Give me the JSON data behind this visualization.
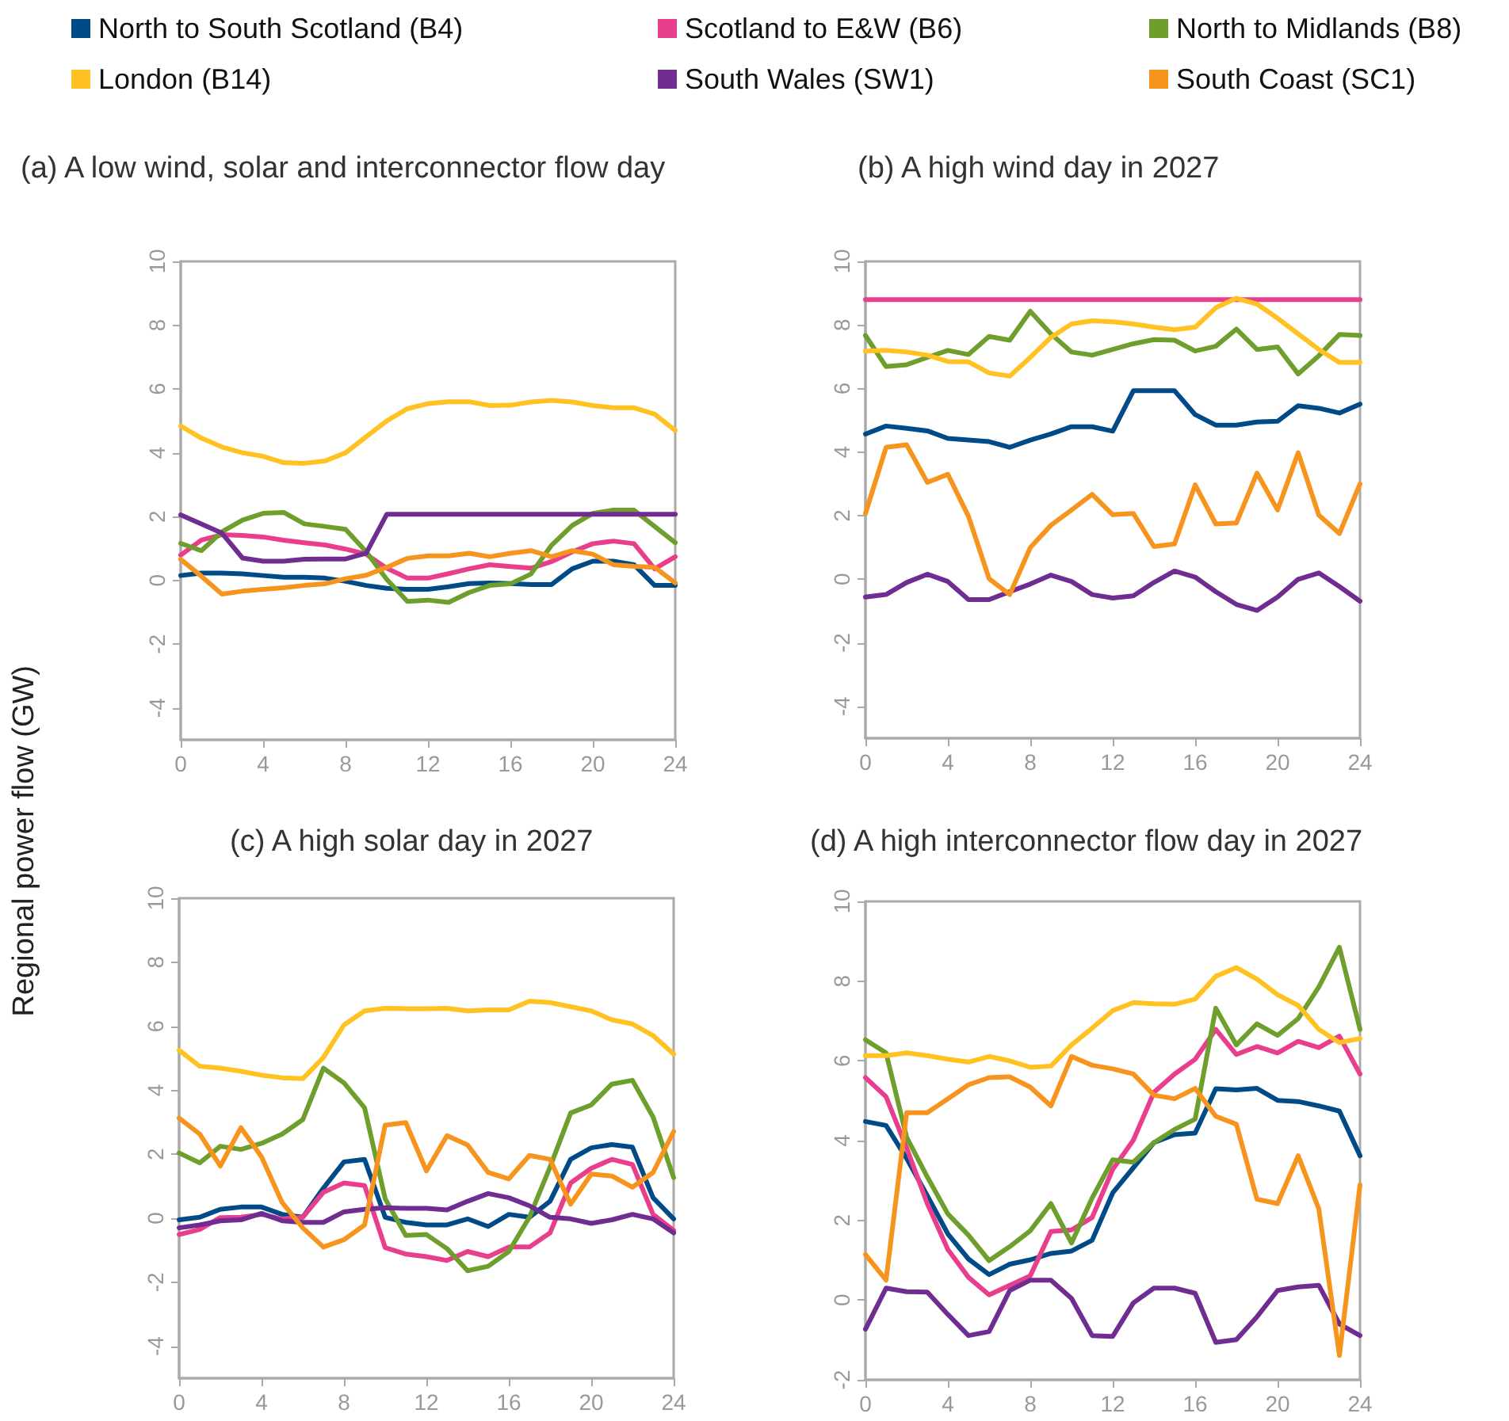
{
  "chart_data": [
    {
      "type": "line",
      "title": "(a) A low wind, solar and interconnector flow day",
      "ylabel": "Regional power flow (GW)",
      "legend": "top",
      "marker": "none",
      "grid": false,
      "x": [
        0,
        1,
        2,
        3,
        4,
        5,
        6,
        7,
        8,
        9,
        10,
        11,
        12,
        13,
        14,
        15,
        16,
        17,
        18,
        19,
        20,
        21,
        22,
        23,
        24
      ],
      "xlim": [
        0,
        24
      ],
      "xticks": [
        0,
        4,
        8,
        12,
        16,
        20,
        24
      ],
      "ylim": [
        -5,
        10
      ],
      "yticks": [
        -4,
        -2,
        0,
        2,
        4,
        6,
        8,
        10
      ],
      "series": [
        {
          "name": "North to South Scotland (B4)",
          "color": "#004b87",
          "values": [
            0.15,
            0.23,
            0.23,
            0.2,
            0.15,
            0.1,
            0.1,
            0.07,
            -0.03,
            -0.16,
            -0.25,
            -0.28,
            -0.28,
            -0.2,
            -0.1,
            -0.08,
            -0.1,
            -0.13,
            -0.13,
            0.36,
            0.6,
            0.6,
            0.49,
            -0.16,
            -0.16
          ]
        },
        {
          "name": "Scotland to E&W (B6)",
          "color": "#e83e8c",
          "values": [
            0.79,
            1.26,
            1.43,
            1.41,
            1.36,
            1.26,
            1.18,
            1.11,
            0.98,
            0.82,
            0.38,
            0.07,
            0.07,
            0.21,
            0.36,
            0.49,
            0.43,
            0.38,
            0.59,
            0.89,
            1.15,
            1.23,
            1.15,
            0.36,
            0.74
          ]
        },
        {
          "name": "North to Midlands (B8)",
          "color": "#6e9f2d",
          "values": [
            1.16,
            0.93,
            1.52,
            1.89,
            2.1,
            2.13,
            1.77,
            1.69,
            1.6,
            0.9,
            0.03,
            -0.66,
            -0.62,
            -0.69,
            -0.38,
            -0.16,
            -0.11,
            0.2,
            1.1,
            1.72,
            2.1,
            2.2,
            2.2,
            1.69,
            1.18
          ]
        },
        {
          "name": "London (B14)",
          "color": "#ffc222",
          "values": [
            4.84,
            4.46,
            4.18,
            4.0,
            3.89,
            3.69,
            3.67,
            3.74,
            4.0,
            4.5,
            5.0,
            5.38,
            5.54,
            5.6,
            5.6,
            5.48,
            5.49,
            5.59,
            5.64,
            5.59,
            5.48,
            5.41,
            5.41,
            5.21,
            4.7
          ]
        },
        {
          "name": "South Wales (SW1)",
          "color": "#6f2c91",
          "values": [
            2.05,
            1.77,
            1.48,
            0.7,
            0.6,
            0.6,
            0.66,
            0.67,
            0.67,
            0.85,
            2.07,
            2.07,
            2.07,
            2.07,
            2.07,
            2.07,
            2.07,
            2.07,
            2.07,
            2.07,
            2.07,
            2.07,
            2.07,
            2.07,
            2.07
          ]
        },
        {
          "name": "South Coast (SC1)",
          "color": "#f7941d",
          "values": [
            0.66,
            0.13,
            -0.43,
            -0.34,
            -0.28,
            -0.23,
            -0.16,
            -0.11,
            0.05,
            0.16,
            0.41,
            0.69,
            0.77,
            0.77,
            0.85,
            0.74,
            0.85,
            0.93,
            0.74,
            0.93,
            0.82,
            0.49,
            0.44,
            0.41,
            -0.08
          ]
        }
      ]
    },
    {
      "type": "line",
      "title": "(b) A high wind day in 2027",
      "marker": "none",
      "grid": false,
      "x": [
        0,
        1,
        2,
        3,
        4,
        5,
        6,
        7,
        8,
        9,
        10,
        11,
        12,
        13,
        14,
        15,
        16,
        17,
        18,
        19,
        20,
        21,
        22,
        23,
        24
      ],
      "xlim": [
        0,
        24
      ],
      "xticks": [
        0,
        4,
        8,
        12,
        16,
        20,
        24
      ],
      "ylim": [
        -5,
        10
      ],
      "yticks": [
        -4,
        -2,
        0,
        2,
        4,
        6,
        8,
        10
      ],
      "series": [
        {
          "color": "#004b87",
          "values": [
            4.57,
            4.82,
            4.75,
            4.67,
            4.43,
            4.38,
            4.33,
            4.15,
            4.38,
            4.57,
            4.8,
            4.8,
            4.66,
            5.93,
            5.93,
            5.93,
            5.18,
            4.85,
            4.85,
            4.95,
            4.97,
            5.46,
            5.38,
            5.23,
            5.51
          ]
        },
        {
          "color": "#e83e8c",
          "values": [
            8.8,
            8.8,
            8.8,
            8.8,
            8.8,
            8.8,
            8.8,
            8.8,
            8.8,
            8.8,
            8.8,
            8.8,
            8.8,
            8.8,
            8.8,
            8.8,
            8.8,
            8.8,
            8.8,
            8.8,
            8.8,
            8.8,
            8.8,
            8.8,
            8.8
          ]
        },
        {
          "color": "#6e9f2d",
          "values": [
            7.67,
            6.69,
            6.75,
            6.98,
            7.2,
            7.07,
            7.64,
            7.52,
            8.43,
            7.72,
            7.15,
            7.05,
            7.23,
            7.41,
            7.54,
            7.52,
            7.18,
            7.33,
            7.87,
            7.23,
            7.31,
            6.46,
            7.03,
            7.7,
            7.67
          ]
        },
        {
          "color": "#ffc222",
          "values": [
            7.18,
            7.2,
            7.15,
            7.05,
            6.85,
            6.84,
            6.49,
            6.39,
            6.98,
            7.61,
            8.03,
            8.13,
            8.1,
            8.03,
            7.93,
            7.85,
            7.93,
            8.54,
            8.84,
            8.66,
            8.21,
            7.72,
            7.23,
            6.82,
            6.82
          ]
        },
        {
          "color": "#6f2c91",
          "values": [
            -0.56,
            -0.48,
            -0.1,
            0.16,
            -0.07,
            -0.64,
            -0.64,
            -0.39,
            -0.15,
            0.13,
            -0.07,
            -0.48,
            -0.59,
            -0.52,
            -0.1,
            0.26,
            0.07,
            -0.39,
            -0.79,
            -0.98,
            -0.56,
            0,
            0.2,
            -0.23,
            -0.69
          ]
        },
        {
          "color": "#f7941d",
          "values": [
            2.07,
            4.15,
            4.23,
            3.05,
            3.3,
            1.98,
            0.02,
            -0.48,
            1.0,
            1.7,
            2.18,
            2.67,
            2.03,
            2.07,
            1.03,
            1.11,
            2.97,
            1.74,
            1.77,
            3.34,
            2.18,
            3.98,
            2.02,
            1.44,
            3.0
          ]
        }
      ]
    },
    {
      "type": "line",
      "title": "(c) A high solar day in 2027",
      "marker": "none",
      "grid": false,
      "x": [
        0,
        1,
        2,
        3,
        4,
        5,
        6,
        7,
        8,
        9,
        10,
        11,
        12,
        13,
        14,
        15,
        16,
        17,
        18,
        19,
        20,
        21,
        22,
        23,
        24
      ],
      "xlim": [
        0,
        24
      ],
      "xticks": [
        0,
        4,
        8,
        12,
        16,
        20,
        24
      ],
      "ylim": [
        -5,
        10
      ],
      "yticks": [
        -4,
        -2,
        0,
        2,
        4,
        6,
        8,
        10
      ],
      "series": [
        {
          "color": "#004b87",
          "values": [
            -0.05,
            0.03,
            0.28,
            0.35,
            0.35,
            0.12,
            0.03,
            0.94,
            1.76,
            1.84,
            0.03,
            -0.13,
            -0.21,
            -0.21,
            -0.02,
            -0.26,
            0.12,
            0.03,
            0.53,
            1.84,
            2.2,
            2.3,
            2.22,
            0.64,
            -0.02
          ]
        },
        {
          "color": "#e83e8c",
          "values": [
            -0.51,
            -0.35,
            0.02,
            0.03,
            0.12,
            -0.02,
            0.03,
            0.81,
            1.1,
            1.02,
            -0.92,
            -1.12,
            -1.2,
            -1.32,
            -1.04,
            -1.2,
            -0.9,
            -0.9,
            -0.46,
            1.1,
            1.56,
            1.84,
            1.68,
            0.12,
            -0.38
          ]
        },
        {
          "color": "#6e9f2d",
          "values": [
            2.04,
            1.73,
            2.25,
            2.15,
            2.34,
            2.63,
            3.08,
            4.69,
            4.23,
            3.45,
            0.61,
            -0.54,
            -0.51,
            -0.95,
            -1.64,
            -1.5,
            -1.04,
            0.03,
            1.6,
            3.29,
            3.54,
            4.19,
            4.31,
            3.16,
            1.27
          ]
        },
        {
          "color": "#ffc222",
          "values": [
            5.25,
            4.75,
            4.69,
            4.59,
            4.47,
            4.39,
            4.36,
            5.02,
            6.04,
            6.48,
            6.56,
            6.55,
            6.55,
            6.56,
            6.48,
            6.51,
            6.51,
            6.78,
            6.74,
            6.61,
            6.48,
            6.2,
            6.07,
            5.71,
            5.13
          ]
        },
        {
          "color": "#6f2c91",
          "values": [
            -0.3,
            -0.21,
            -0.08,
            -0.05,
            0.15,
            -0.08,
            -0.13,
            -0.13,
            0.2,
            0.28,
            0.33,
            0.31,
            0.31,
            0.26,
            0.53,
            0.77,
            0.64,
            0.39,
            0.03,
            -0.02,
            -0.16,
            -0.05,
            0.12,
            -0.02,
            -0.46
          ]
        },
        {
          "color": "#f7941d",
          "values": [
            3.13,
            2.63,
            1.63,
            2.83,
            1.92,
            0.49,
            -0.3,
            -0.9,
            -0.67,
            -0.21,
            2.91,
            2.99,
            1.48,
            2.58,
            2.29,
            1.43,
            1.23,
            1.96,
            1.84,
            0.44,
            1.38,
            1.32,
            0.97,
            1.43,
            2.71
          ]
        }
      ]
    },
    {
      "type": "line",
      "title": "(d) A high interconnector flow day in 2027",
      "marker": "none",
      "grid": false,
      "x": [
        0,
        1,
        2,
        3,
        4,
        5,
        6,
        7,
        8,
        9,
        10,
        11,
        12,
        13,
        14,
        15,
        16,
        17,
        18,
        19,
        20,
        21,
        22,
        23,
        24
      ],
      "xlim": [
        0,
        24
      ],
      "xticks": [
        0,
        4,
        8,
        12,
        16,
        20,
        24
      ],
      "ylim": [
        -2,
        10
      ],
      "yticks": [
        -2,
        0,
        2,
        4,
        6,
        8,
        10
      ],
      "series": [
        {
          "color": "#004b87",
          "values": [
            4.48,
            4.38,
            3.55,
            2.62,
            1.66,
            1.03,
            0.64,
            0.9,
            1.01,
            1.17,
            1.23,
            1.5,
            2.69,
            3.32,
            3.95,
            4.15,
            4.19,
            5.3,
            5.27,
            5.31,
            5.01,
            4.98,
            4.87,
            4.74,
            3.62
          ]
        },
        {
          "color": "#e83e8c",
          "values": [
            5.58,
            5.1,
            3.81,
            2.42,
            1.27,
            0.57,
            0.13,
            0.37,
            0.61,
            1.72,
            1.76,
            2.07,
            3.28,
            4.01,
            5.21,
            5.67,
            6.04,
            6.79,
            6.16,
            6.36,
            6.2,
            6.49,
            6.33,
            6.62,
            5.67
          ]
        },
        {
          "color": "#6e9f2d",
          "values": [
            6.53,
            6.2,
            4.08,
            3.09,
            2.16,
            1.63,
            0.99,
            1.34,
            1.74,
            2.42,
            1.43,
            2.56,
            3.52,
            3.46,
            3.95,
            4.28,
            4.54,
            7.32,
            6.4,
            6.93,
            6.64,
            7.06,
            7.85,
            8.85,
            6.79
          ]
        },
        {
          "color": "#ffc222",
          "values": [
            6.13,
            6.13,
            6.2,
            6.13,
            6.04,
            5.97,
            6.11,
            6.0,
            5.84,
            5.87,
            6.4,
            6.82,
            7.26,
            7.46,
            7.43,
            7.42,
            7.55,
            8.12,
            8.34,
            8.05,
            7.66,
            7.39,
            6.79,
            6.46,
            6.56
          ]
        },
        {
          "color": "#6f2c91",
          "values": [
            -0.73,
            0.3,
            0.21,
            0.2,
            -0.36,
            -0.89,
            -0.79,
            0.24,
            0.5,
            0.5,
            0.04,
            -0.89,
            -0.91,
            -0.07,
            0.3,
            0.3,
            0.17,
            -1.06,
            -0.99,
            -0.42,
            0.24,
            0.33,
            0.37,
            -0.6,
            -0.89
          ]
        },
        {
          "color": "#f7941d",
          "values": [
            1.14,
            0.5,
            4.7,
            4.7,
            5.05,
            5.4,
            5.58,
            5.6,
            5.34,
            4.87,
            6.11,
            5.89,
            5.8,
            5.67,
            5.14,
            5.05,
            5.31,
            4.61,
            4.41,
            2.53,
            2.42,
            3.62,
            2.29,
            -1.39,
            2.89
          ]
        }
      ]
    }
  ]
}
